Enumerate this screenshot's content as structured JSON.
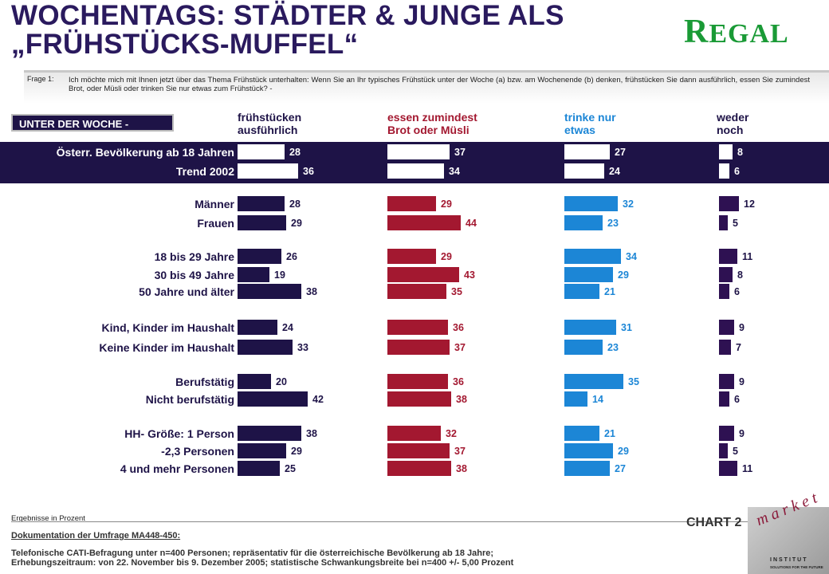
{
  "title_line1": "WOCHENTAGS: STÄDTER & JUNGE ALS",
  "title_line2": "„FRÜHSTÜCKS-MUFFEL“",
  "logo": {
    "first": "R",
    "rest": "EGAL"
  },
  "frage_label": "Frage 1:",
  "frage_text": "Ich möchte mich mit Ihnen jetzt über das Thema Frühstück unterhalten: Wenn Sie an Ihr typisches Frühstück unter der Woche (a) bzw. am Wochenende (b) denken, frühstücken Sie dann ausführlich, essen Sie zumindest Brot, oder Müsli oder trinken Sie nur etwas zum Frühstück? -",
  "section_label": "UNTER DER WOCHE -",
  "colors": {
    "navy": "#1e1347",
    "red": "#a31830",
    "blue": "#1c86d6",
    "purple": "#2e1152",
    "white": "#ffffff"
  },
  "footer": {
    "results_note": "Ergebnisse in Prozent",
    "doc_title": "Dokumentation der Umfrage MA448-450:",
    "doc_line1": "Telefonische CATI-Befragung unter n=400 Personen; repräsentativ für die österreichische Bevölkerung ab 18 Jahre;",
    "doc_line2": "Erhebungszeitraum: von 22. November bis 9. Dezember 2005; statistische Schwankungsbreite bei n=400 +/- 5,00 Prozent",
    "chart_number": "CHART 2",
    "brand": "market",
    "brand_sub": "INSTITUT",
    "brand_tag": "SOLUTIONS FOR THE FUTURE"
  },
  "chart_data": {
    "type": "bar",
    "orientation": "horizontal",
    "unit": "Prozent",
    "series": [
      {
        "name": "frühstücken ausführlich",
        "label_lines": [
          "frühstücken",
          "ausführlich"
        ],
        "color": "#1e1347",
        "values": [
          28,
          36,
          28,
          29,
          26,
          19,
          38,
          24,
          33,
          20,
          42,
          38,
          29,
          25
        ]
      },
      {
        "name": "essen zumindest Brot oder Müsli",
        "label_lines": [
          "essen zumindest",
          "Brot oder Müsli"
        ],
        "color": "#a31830",
        "values": [
          37,
          34,
          29,
          44,
          29,
          43,
          35,
          36,
          37,
          36,
          38,
          32,
          37,
          38
        ]
      },
      {
        "name": "trinke nur etwas",
        "label_lines": [
          "trinke nur",
          "etwas"
        ],
        "color": "#1c86d6",
        "values": [
          27,
          24,
          32,
          23,
          34,
          29,
          21,
          31,
          23,
          35,
          14,
          21,
          29,
          27
        ]
      },
      {
        "name": "weder noch",
        "label_lines": [
          "weder",
          "noch"
        ],
        "color": "#2e1152",
        "values": [
          8,
          6,
          12,
          5,
          11,
          8,
          6,
          9,
          7,
          9,
          6,
          9,
          5,
          11
        ]
      }
    ],
    "categories": [
      "Österr. Bevölkerung ab 18 Jahren",
      "Trend 2002",
      "Männer",
      "Frauen",
      "18 bis 29 Jahre",
      "30 bis 49 Jahre",
      "50 Jahre und älter",
      "Kind, Kinder im Haushalt",
      "Keine Kinder im Haushalt",
      "Berufstätig",
      "Nicht berufstätig",
      "HH- Größe: 1 Person",
      "-2,3  Personen",
      "4 und mehr Personen"
    ],
    "highlighted_rows": [
      0,
      1
    ]
  }
}
